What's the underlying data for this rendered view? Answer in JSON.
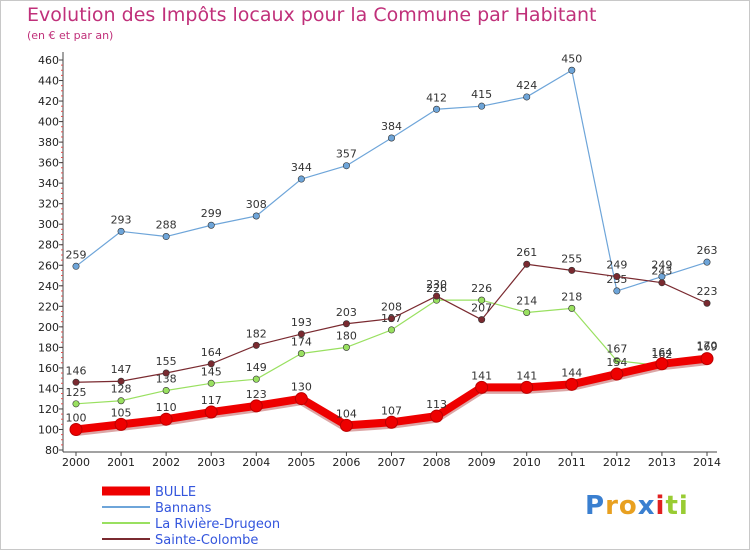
{
  "chart_data": {
    "type": "line",
    "title": "Evolution des Impôts locaux pour la Commune par Habitant",
    "subtitle": "(en € et par an)",
    "categories": [
      "2000",
      "2001",
      "2002",
      "2003",
      "2004",
      "2005",
      "2006",
      "2007",
      "2008",
      "2009",
      "2010",
      "2011",
      "2012",
      "2013",
      "2014"
    ],
    "ylim": [
      80,
      460
    ],
    "yticks": [
      80,
      100,
      120,
      140,
      160,
      180,
      200,
      220,
      240,
      260,
      280,
      300,
      320,
      340,
      360,
      380,
      400,
      420,
      440,
      460
    ],
    "grid": false,
    "legend_position": "bottom-left",
    "series": [
      {
        "name": "BULLE",
        "color": "#ee0000",
        "values": [
          100,
          105,
          110,
          117,
          123,
          130,
          104,
          107,
          113,
          141,
          141,
          144,
          154,
          164,
          169
        ]
      },
      {
        "name": "Bannans",
        "color": "#6ea5d9",
        "values": [
          259,
          293,
          288,
          299,
          308,
          344,
          357,
          384,
          412,
          415,
          424,
          450,
          235,
          249,
          263
        ]
      },
      {
        "name": "La Rivière-Drugeon",
        "color": "#99e060",
        "values": [
          125,
          128,
          138,
          145,
          149,
          174,
          180,
          197,
          226,
          226,
          214,
          218,
          167,
          162,
          170
        ]
      },
      {
        "name": "Sainte-Colombe",
        "color": "#7a2a30",
        "values": [
          146,
          147,
          155,
          164,
          182,
          193,
          203,
          208,
          230,
          207,
          261,
          255,
          249,
          243,
          223
        ]
      }
    ]
  },
  "logo": {
    "letters": [
      "P",
      "r",
      "o",
      "x",
      "i",
      "t",
      "i"
    ],
    "colors": [
      "#3a7fd0",
      "#e8a020",
      "#e8a020",
      "#3a7fd0",
      "#e02020",
      "#99cc33",
      "#99cc33"
    ]
  }
}
